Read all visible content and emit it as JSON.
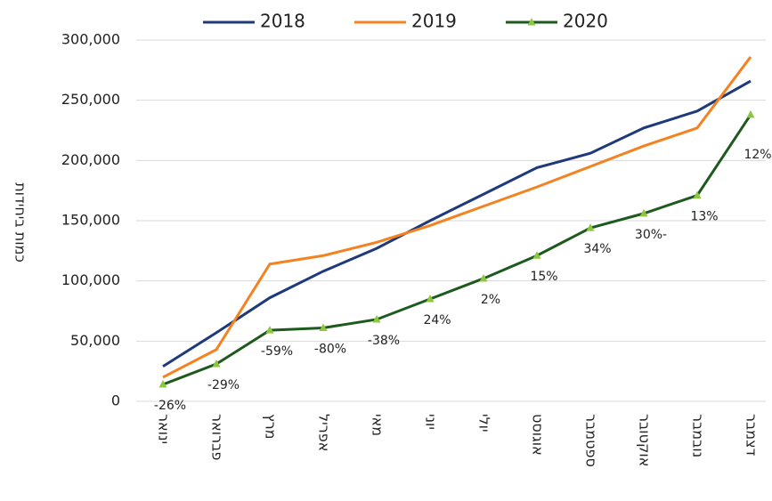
{
  "chart_data": {
    "type": "line",
    "y_label": "כמות ביחידות",
    "categories": [
      "ינואר",
      "פברואר",
      "מרץ",
      "אפריל",
      "מאי",
      "יוני",
      "יולי",
      "אוגוסט",
      "ספטמבר",
      "אוקטובר",
      "נובמבר",
      "דצמבר"
    ],
    "series": [
      {
        "name": "2018",
        "color": "#1f3a7a",
        "values": [
          29000,
          57000,
          86000,
          108000,
          127000,
          150000,
          172000,
          194000,
          206000,
          227000,
          241000,
          266000
        ]
      },
      {
        "name": "2019",
        "color": "#f58220",
        "values": [
          20000,
          43000,
          114000,
          121000,
          132000,
          146000,
          162000,
          178000,
          195000,
          212000,
          227000,
          286000
        ]
      },
      {
        "name": "2020",
        "color": "#1e5a1e",
        "marker_color": "#8dc63f",
        "values": [
          14000,
          31000,
          59000,
          61000,
          68000,
          85000,
          102000,
          121000,
          144000,
          156000,
          171000,
          238000
        ]
      }
    ],
    "annotations": [
      "-26%",
      "-29%",
      "-59%",
      "-80%",
      "-38%",
      "24%",
      "2%",
      "15%",
      "34%",
      "30%-",
      "13%",
      "12%"
    ],
    "ylim": [
      0,
      300000
    ],
    "yticks": [
      0,
      {
        "value": 50000,
        "label": "50,000"
      },
      {
        "value": 100000,
        "label": "100,000"
      },
      {
        "value": 150000,
        "label": "150,000"
      },
      {
        "value": 200000,
        "label": "200,000"
      },
      {
        "value": 250000,
        "label": "250,000"
      },
      {
        "value": 300000,
        "label": "300,000"
      }
    ],
    "grid": true
  }
}
